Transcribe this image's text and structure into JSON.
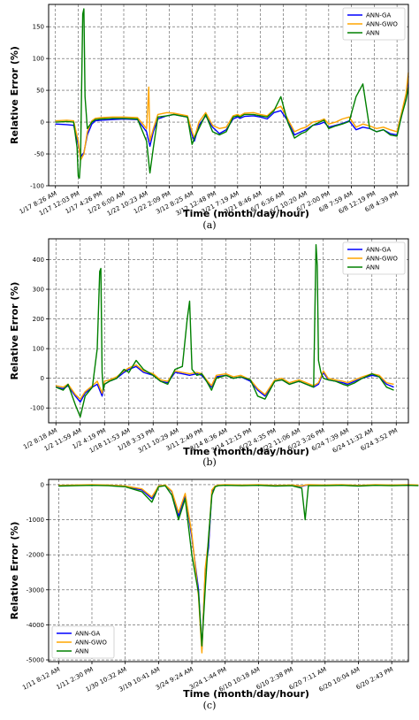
{
  "chart_data": [
    {
      "type": "line",
      "caption": "(a)",
      "xlabel": "Time (month/day/hour)",
      "ylabel": "Relative Error (%)",
      "ylim": [
        -100,
        185
      ],
      "yticks": [
        -100,
        -50,
        0,
        50,
        100,
        150
      ],
      "xticks": [
        "1/17 8:26 AM",
        "1/17 12:03 PM",
        "1/17 4:26 PM",
        "1/22 6:00 AM",
        "1/22 10:23 AM",
        "1/22 2:09 PM",
        "3/12 8:25 AM",
        "3/12 12:48 PM",
        "3/21 7:19 AM",
        "3/21 8:46 AM",
        "6/7 6:36 AM",
        "6/7 10:20 AM",
        "6/7 2:00 PM",
        "6/8 7:59 AM",
        "6/8 12:19 PM",
        "6/8 4:39 PM"
      ],
      "grid": true,
      "legend": "top-right",
      "series": [
        {
          "name": "ANN-GA",
          "color": "#0000ff",
          "x": [
            0,
            0.5,
            0.8,
            1.0,
            1.1,
            1.25,
            1.4,
            1.6,
            1.75,
            2,
            2.5,
            3,
            3.6,
            4,
            4.15,
            4.3,
            4.5,
            4.9,
            5.2,
            5.5,
            5.8,
            6,
            6.1,
            6.3,
            6.6,
            6.9,
            7.2,
            7.5,
            7.8,
            8,
            8.1,
            8.3,
            8.7,
            9,
            9.3,
            9.6,
            9.9,
            10.2,
            10.5,
            10.8,
            11,
            11.3,
            11.6,
            11.8,
            12,
            12.3,
            12.6,
            12.9,
            13.2,
            13.5,
            13.8,
            14.1,
            14.4,
            14.7,
            15,
            15.2,
            15.4,
            15.5
          ],
          "y": [
            -3,
            -4,
            -5,
            -35,
            -55,
            -48,
            -20,
            -3,
            2,
            3,
            4,
            5,
            4,
            -15,
            -38,
            -15,
            5,
            10,
            12,
            10,
            8,
            -20,
            -30,
            -5,
            10,
            -8,
            -18,
            -12,
            5,
            8,
            6,
            9,
            10,
            8,
            5,
            15,
            18,
            2,
            -20,
            -15,
            -12,
            -5,
            -3,
            0,
            -8,
            -5,
            -2,
            2,
            -12,
            -8,
            -10,
            -15,
            -12,
            -18,
            -20,
            10,
            40,
            72
          ]
        },
        {
          "name": "ANN-GWO",
          "color": "#ffa500",
          "x": [
            0,
            0.5,
            0.8,
            1.0,
            1.1,
            1.25,
            1.4,
            1.6,
            1.75,
            2,
            2.5,
            3,
            3.6,
            4,
            4.1,
            4.15,
            4.3,
            4.5,
            4.9,
            5.2,
            5.5,
            5.8,
            6,
            6.1,
            6.3,
            6.6,
            6.9,
            7.2,
            7.5,
            7.8,
            8,
            8.1,
            8.3,
            8.7,
            9,
            9.3,
            9.6,
            9.9,
            10.2,
            10.5,
            10.8,
            11,
            11.3,
            11.6,
            11.8,
            12,
            12.3,
            12.6,
            12.9,
            13.2,
            13.5,
            13.8,
            14.1,
            14.4,
            14.7,
            15,
            15.2,
            15.4,
            15.5
          ],
          "y": [
            2,
            3,
            2,
            -30,
            -60,
            -50,
            -15,
            2,
            6,
            7,
            8,
            8,
            7,
            -10,
            55,
            -30,
            -10,
            12,
            15,
            14,
            12,
            10,
            -15,
            -25,
            0,
            15,
            -5,
            -10,
            -8,
            10,
            12,
            10,
            14,
            15,
            12,
            10,
            20,
            25,
            5,
            -15,
            -10,
            -8,
            0,
            2,
            5,
            -3,
            0,
            5,
            8,
            -8,
            -3,
            -6,
            -10,
            -8,
            -12,
            -15,
            15,
            45,
            78
          ]
        },
        {
          "name": "ANN",
          "color": "#008000",
          "x": [
            0,
            0.5,
            0.8,
            0.95,
            1.0,
            1.05,
            1.1,
            1.15,
            1.2,
            1.25,
            1.3,
            1.4,
            1.6,
            1.75,
            2,
            2.5,
            3,
            3.6,
            4,
            4.15,
            4.3,
            4.5,
            4.9,
            5.2,
            5.5,
            5.8,
            6,
            6.1,
            6.3,
            6.6,
            6.9,
            7.2,
            7.5,
            7.8,
            8,
            8.1,
            8.3,
            8.7,
            9,
            9.3,
            9.6,
            9.9,
            10.2,
            10.5,
            10.8,
            11,
            11.3,
            11.6,
            11.8,
            12,
            12.3,
            12.6,
            12.9,
            13.2,
            13.5,
            13.8,
            14.1,
            14.4,
            14.7,
            15,
            15.2,
            15.4,
            15.5
          ],
          "y": [
            0,
            1,
            0,
            -40,
            -85,
            -88,
            -60,
            60,
            170,
            178,
            40,
            -10,
            0,
            4,
            5,
            6,
            6,
            5,
            -30,
            -80,
            -40,
            8,
            10,
            12,
            10,
            8,
            -35,
            -25,
            -10,
            12,
            -15,
            -20,
            -15,
            8,
            10,
            8,
            12,
            12,
            10,
            8,
            18,
            40,
            0,
            -25,
            -18,
            -15,
            -5,
            0,
            3,
            -10,
            -6,
            -3,
            1,
            40,
            60,
            -10,
            -15,
            -12,
            -20,
            -22,
            10,
            35,
            55
          ]
        }
      ]
    },
    {
      "type": "line",
      "caption": "(b)",
      "xlabel": "Time (month/day/hour)",
      "ylabel": "Relative Error (%)",
      "ylim": [
        -150,
        470
      ],
      "yticks": [
        -100,
        0,
        100,
        200,
        300,
        400
      ],
      "xticks": [
        "1/2 8:18 AM",
        "1/2 11:59 AM",
        "1/2 4:19 PM",
        "1/18 11:53 AM",
        "1/18 3:33 PM",
        "3/11 10:29 AM",
        "3/11 2:49 PM",
        "3/14 8:36 AM",
        "3/14 12:15 PM",
        "6/22 4:35 PM",
        "6/22 11:06 AM",
        "6/22 3:26 PM",
        "6/24 7:39 AM",
        "6/24 11:32 AM",
        "6/24 3:52 PM"
      ],
      "grid": true,
      "legend": "top-right",
      "series": [
        {
          "name": "ANN-GA",
          "color": "#0000ff",
          "x": [
            0,
            0.3,
            0.5,
            0.8,
            1.0,
            1.2,
            1.5,
            1.7,
            1.8,
            1.9,
            2,
            2.2,
            2.5,
            2.8,
            3,
            3.3,
            3.6,
            4,
            4.3,
            4.6,
            4.9,
            5.2,
            5.5,
            5.8,
            6,
            6.2,
            6.4,
            6.6,
            7,
            7.3,
            7.6,
            8,
            8.3,
            8.6,
            9,
            9.3,
            9.6,
            10,
            10.3,
            10.6,
            10.8,
            10.9,
            11,
            11.2,
            11.5,
            11.8,
            12,
            12.3,
            12.6,
            13,
            13.3,
            13.6,
            13.9
          ],
          "y": [
            -30,
            -35,
            -25,
            -60,
            -80,
            -50,
            -30,
            -20,
            -40,
            -60,
            -20,
            -10,
            0,
            20,
            30,
            40,
            20,
            10,
            -10,
            -15,
            20,
            15,
            10,
            15,
            10,
            -10,
            -30,
            5,
            10,
            0,
            5,
            -10,
            -40,
            -60,
            -10,
            -5,
            -20,
            -10,
            -20,
            -30,
            -20,
            0,
            20,
            -5,
            -10,
            -15,
            -20,
            -10,
            0,
            10,
            5,
            -20,
            -30
          ]
        },
        {
          "name": "ANN-GWO",
          "color": "#ffa500",
          "x": [
            0,
            0.3,
            0.5,
            0.8,
            1.0,
            1.2,
            1.5,
            1.7,
            1.8,
            1.9,
            2,
            2.2,
            2.5,
            2.8,
            3,
            3.3,
            3.6,
            4,
            4.3,
            4.6,
            4.9,
            5.2,
            5.5,
            5.8,
            6,
            6.2,
            6.4,
            6.6,
            7,
            7.3,
            7.6,
            8,
            8.3,
            8.6,
            9,
            9.3,
            9.6,
            10,
            10.3,
            10.6,
            10.8,
            10.9,
            11,
            11.2,
            11.5,
            11.8,
            12,
            12.3,
            12.6,
            13,
            13.3,
            13.6,
            13.9
          ],
          "y": [
            -25,
            -30,
            -20,
            -55,
            -70,
            -45,
            -25,
            -10,
            -30,
            -50,
            -10,
            -5,
            5,
            25,
            35,
            45,
            25,
            15,
            -5,
            -10,
            25,
            20,
            15,
            20,
            15,
            -5,
            -25,
            10,
            15,
            5,
            10,
            -5,
            -35,
            -55,
            -5,
            0,
            -15,
            -5,
            -15,
            -25,
            -15,
            5,
            25,
            0,
            -5,
            -10,
            -15,
            -5,
            5,
            15,
            10,
            -15,
            -20
          ]
        },
        {
          "name": "ANN",
          "color": "#008000",
          "x": [
            0,
            0.3,
            0.5,
            0.8,
            1.0,
            1.2,
            1.5,
            1.7,
            1.8,
            1.85,
            1.9,
            1.95,
            2,
            2.2,
            2.5,
            2.8,
            3,
            3.3,
            3.6,
            4,
            4.3,
            4.6,
            4.9,
            5.2,
            5.4,
            5.5,
            5.6,
            5.8,
            6,
            6.2,
            6.4,
            6.6,
            7,
            7.3,
            7.6,
            8,
            8.3,
            8.6,
            9,
            9.3,
            9.6,
            10,
            10.3,
            10.6,
            10.7,
            10.75,
            10.8,
            10.9,
            11,
            11.2,
            11.5,
            11.8,
            12,
            12.3,
            12.6,
            13,
            13.3,
            13.6,
            13.9
          ],
          "y": [
            -30,
            -40,
            -20,
            -90,
            -130,
            -60,
            -30,
            100,
            360,
            370,
            20,
            -40,
            -20,
            -10,
            0,
            30,
            20,
            60,
            30,
            10,
            -10,
            -20,
            30,
            40,
            200,
            260,
            30,
            10,
            15,
            -10,
            -40,
            0,
            10,
            0,
            5,
            -5,
            -60,
            -70,
            -10,
            -5,
            -20,
            -10,
            -20,
            -30,
            450,
            380,
            60,
            20,
            0,
            -5,
            -10,
            -20,
            -25,
            -15,
            0,
            15,
            5,
            -30,
            -40
          ]
        }
      ]
    },
    {
      "type": "line",
      "caption": "(c)",
      "xlabel": "Time (month/day/hour)",
      "ylabel": "Relative Error (%)",
      "ylim": [
        -5050,
        150
      ],
      "yticks": [
        -5000,
        -4000,
        -3000,
        -2000,
        -1000,
        0
      ],
      "xticks": [
        "1/11 8:12 AM",
        "1/11 2:30 PM",
        "1/30 10:32 AM",
        "3/19 10:41 AM",
        "3/24 9:24 AM",
        "3/24 1:44 PM",
        "6/10 10:18 AM",
        "6/10 2:38 PM",
        "6/20 7:11 AM",
        "6/20 10:04 AM",
        "6/20 2:43 PM"
      ],
      "grid": true,
      "legend": "bottom-left",
      "series": [
        {
          "name": "ANN-GA",
          "color": "#0000ff",
          "x": [
            0,
            0.5,
            1,
            1.5,
            2,
            2.5,
            2.8,
            3,
            3.2,
            3.4,
            3.6,
            3.8,
            4,
            4.2,
            4.3,
            4.4,
            4.5,
            4.6,
            4.7,
            4.8,
            5,
            5.5,
            6,
            6.5,
            7,
            7.3,
            7.4,
            7.5,
            8,
            8.5,
            9,
            9.5,
            10,
            10.5,
            10.8
          ],
          "y": [
            -30,
            -20,
            -10,
            -20,
            -50,
            -150,
            -400,
            -50,
            -20,
            -200,
            -900,
            -300,
            -1500,
            -3000,
            -4700,
            -2500,
            -1800,
            -200,
            -50,
            -20,
            -10,
            -20,
            -10,
            -30,
            -20,
            -50,
            -20,
            -10,
            -20,
            -10,
            -30,
            -10,
            -20,
            -10,
            -20
          ]
        },
        {
          "name": "ANN-GWO",
          "color": "#ffa500",
          "x": [
            0,
            0.5,
            1,
            1.5,
            2,
            2.5,
            2.8,
            3,
            3.2,
            3.4,
            3.6,
            3.8,
            4,
            4.2,
            4.3,
            4.4,
            4.5,
            4.6,
            4.7,
            4.8,
            5,
            5.5,
            6,
            6.5,
            7,
            7.3,
            7.4,
            7.5,
            8,
            8.5,
            9,
            9.5,
            10,
            10.5,
            10.8
          ],
          "y": [
            -20,
            -10,
            0,
            -10,
            -40,
            -120,
            -350,
            -40,
            -10,
            -180,
            -800,
            -250,
            -1400,
            -3200,
            -4800,
            -2400,
            -1600,
            -150,
            -40,
            -10,
            0,
            -10,
            0,
            -20,
            -10,
            -40,
            -10,
            0,
            -10,
            0,
            -20,
            0,
            -10,
            0,
            -10
          ]
        },
        {
          "name": "ANN",
          "color": "#008000",
          "x": [
            0,
            0.5,
            1,
            1.5,
            2,
            2.5,
            2.8,
            3,
            3.2,
            3.4,
            3.6,
            3.8,
            4,
            4.2,
            4.3,
            4.4,
            4.5,
            4.6,
            4.7,
            4.8,
            5,
            5.5,
            6,
            6.5,
            7,
            7.3,
            7.4,
            7.5,
            8,
            8.5,
            9,
            9.5,
            10,
            10.5,
            10.8
          ],
          "y": [
            -40,
            -30,
            -20,
            -30,
            -60,
            -200,
            -500,
            -60,
            -30,
            -300,
            -1000,
            -400,
            -2000,
            -3100,
            -4600,
            -3000,
            -1500,
            -300,
            -60,
            -30,
            -20,
            -30,
            -20,
            -40,
            -30,
            -100,
            -1000,
            -30,
            -30,
            -20,
            -40,
            -20,
            -30,
            -20,
            -30
          ]
        }
      ]
    }
  ]
}
